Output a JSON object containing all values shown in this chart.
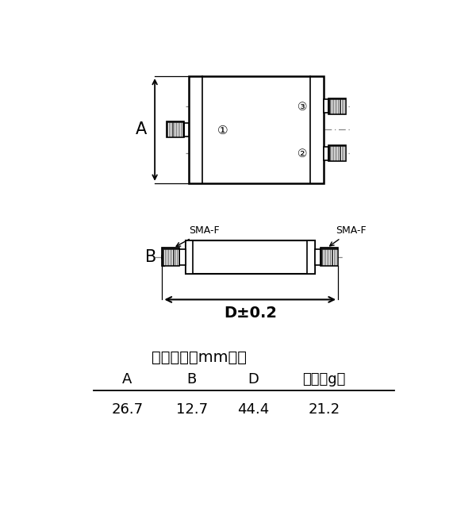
{
  "bg_color": "#ffffff",
  "line_color": "#000000",
  "dash_color": "#555555",
  "title_text": "外观尺寸（mm）：",
  "col_headers": [
    "A",
    "B",
    "D",
    "重量（g）"
  ],
  "col_values": [
    "26.7",
    "12.7",
    "44.4",
    "21.2"
  ],
  "label_A": "A",
  "label_B": "B",
  "label_D": "D±0.2",
  "label_1": "①",
  "label_2": "②",
  "label_3": "③",
  "sma_label": "SMA-F",
  "figsize": [
    6.0,
    6.59
  ],
  "dpi": 100
}
